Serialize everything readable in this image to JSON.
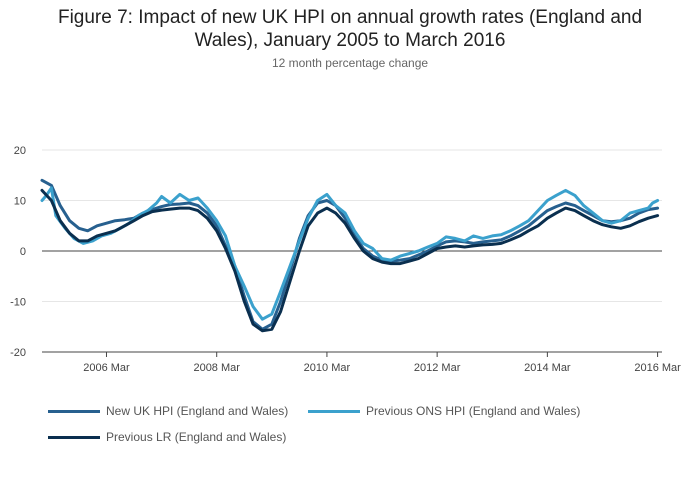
{
  "chart_data": {
    "type": "line",
    "title": "Figure 7: Impact of new UK HPI on annual growth rates (England and Wales), January 2005 to March 2016",
    "subtitle": "12 month percentage change",
    "xlabel": "",
    "ylabel": "",
    "xlim": [
      2005.0,
      2016.25
    ],
    "ylim": [
      -20,
      20
    ],
    "yticks": [
      -20,
      -10,
      0,
      10,
      20
    ],
    "xticks": [
      {
        "value": 2006.17,
        "label": "2006 Mar"
      },
      {
        "value": 2008.17,
        "label": "2008 Mar"
      },
      {
        "value": 2010.17,
        "label": "2010 Mar"
      },
      {
        "value": 2012.17,
        "label": "2012 Mar"
      },
      {
        "value": 2014.17,
        "label": "2014 Mar"
      },
      {
        "value": 2016.17,
        "label": "2016 Mar"
      }
    ],
    "grid": true,
    "legend_position": "bottom",
    "series": [
      {
        "name": "New UK HPI (England and Wales)",
        "color": "#27608f",
        "points": [
          [
            2005.0,
            14
          ],
          [
            2005.17,
            13
          ],
          [
            2005.33,
            9
          ],
          [
            2005.5,
            6
          ],
          [
            2005.67,
            4.5
          ],
          [
            2005.83,
            4
          ],
          [
            2006.0,
            5
          ],
          [
            2006.17,
            5.5
          ],
          [
            2006.33,
            6
          ],
          [
            2006.5,
            6.2
          ],
          [
            2006.67,
            6.5
          ],
          [
            2006.83,
            7.5
          ],
          [
            2007.0,
            8.2
          ],
          [
            2007.17,
            8.8
          ],
          [
            2007.33,
            9.2
          ],
          [
            2007.5,
            9.3
          ],
          [
            2007.67,
            9.5
          ],
          [
            2007.83,
            9
          ],
          [
            2008.0,
            7.5
          ],
          [
            2008.17,
            5
          ],
          [
            2008.33,
            1
          ],
          [
            2008.5,
            -3
          ],
          [
            2008.67,
            -9
          ],
          [
            2008.83,
            -14
          ],
          [
            2009.0,
            -15.5
          ],
          [
            2009.17,
            -14.5
          ],
          [
            2009.33,
            -10
          ],
          [
            2009.5,
            -4
          ],
          [
            2009.67,
            2.5
          ],
          [
            2009.83,
            7
          ],
          [
            2010.0,
            9.5
          ],
          [
            2010.17,
            10
          ],
          [
            2010.33,
            9
          ],
          [
            2010.5,
            6.5
          ],
          [
            2010.67,
            3
          ],
          [
            2010.83,
            0.5
          ],
          [
            2011.0,
            -1
          ],
          [
            2011.17,
            -1.8
          ],
          [
            2011.33,
            -2
          ],
          [
            2011.5,
            -1.8
          ],
          [
            2011.67,
            -1.5
          ],
          [
            2011.83,
            -0.8
          ],
          [
            2012.0,
            0
          ],
          [
            2012.17,
            1
          ],
          [
            2012.33,
            1.8
          ],
          [
            2012.5,
            2
          ],
          [
            2012.67,
            1.8
          ],
          [
            2012.83,
            1.5
          ],
          [
            2013.0,
            1.8
          ],
          [
            2013.17,
            2
          ],
          [
            2013.33,
            2.2
          ],
          [
            2013.5,
            3
          ],
          [
            2013.67,
            4
          ],
          [
            2013.83,
            5
          ],
          [
            2014.0,
            6.5
          ],
          [
            2014.17,
            8
          ],
          [
            2014.33,
            8.8
          ],
          [
            2014.5,
            9.5
          ],
          [
            2014.67,
            9
          ],
          [
            2014.83,
            8
          ],
          [
            2015.0,
            7
          ],
          [
            2015.17,
            6
          ],
          [
            2015.33,
            5.8
          ],
          [
            2015.5,
            6
          ],
          [
            2015.67,
            6.5
          ],
          [
            2015.83,
            7.5
          ],
          [
            2016.0,
            8.2
          ],
          [
            2016.17,
            8.5
          ]
        ]
      },
      {
        "name": "Previous ONS HPI (England and Wales)",
        "color": "#3ba1cd",
        "points": [
          [
            2005.0,
            10
          ],
          [
            2005.08,
            11
          ],
          [
            2005.17,
            12.5
          ],
          [
            2005.25,
            7
          ],
          [
            2005.42,
            4.5
          ],
          [
            2005.58,
            2.5
          ],
          [
            2005.75,
            1.5
          ],
          [
            2005.92,
            2
          ],
          [
            2006.08,
            3
          ],
          [
            2006.25,
            3.5
          ],
          [
            2006.42,
            4.5
          ],
          [
            2006.58,
            5.5
          ],
          [
            2006.75,
            7
          ],
          [
            2006.92,
            8
          ],
          [
            2007.08,
            9.5
          ],
          [
            2007.17,
            10.8
          ],
          [
            2007.33,
            9.5
          ],
          [
            2007.5,
            11.2
          ],
          [
            2007.67,
            10
          ],
          [
            2007.83,
            10.5
          ],
          [
            2008.0,
            8.5
          ],
          [
            2008.17,
            6
          ],
          [
            2008.33,
            3
          ],
          [
            2008.5,
            -3
          ],
          [
            2008.67,
            -7
          ],
          [
            2008.83,
            -11
          ],
          [
            2009.0,
            -13.5
          ],
          [
            2009.17,
            -12.5
          ],
          [
            2009.33,
            -8
          ],
          [
            2009.5,
            -3
          ],
          [
            2009.67,
            2
          ],
          [
            2009.83,
            6.5
          ],
          [
            2010.0,
            10
          ],
          [
            2010.17,
            11.2
          ],
          [
            2010.33,
            9
          ],
          [
            2010.5,
            7.5
          ],
          [
            2010.67,
            4
          ],
          [
            2010.83,
            1.5
          ],
          [
            2011.0,
            0.5
          ],
          [
            2011.17,
            -1.5
          ],
          [
            2011.33,
            -1.8
          ],
          [
            2011.5,
            -1
          ],
          [
            2011.67,
            -0.5
          ],
          [
            2011.83,
            0
          ],
          [
            2012.0,
            0.8
          ],
          [
            2012.17,
            1.5
          ],
          [
            2012.33,
            2.8
          ],
          [
            2012.5,
            2.5
          ],
          [
            2012.67,
            2
          ],
          [
            2012.83,
            3
          ],
          [
            2013.0,
            2.5
          ],
          [
            2013.17,
            3
          ],
          [
            2013.33,
            3.2
          ],
          [
            2013.5,
            4
          ],
          [
            2013.67,
            5
          ],
          [
            2013.83,
            6
          ],
          [
            2014.0,
            8
          ],
          [
            2014.17,
            10
          ],
          [
            2014.33,
            11
          ],
          [
            2014.5,
            12
          ],
          [
            2014.67,
            11
          ],
          [
            2014.83,
            9
          ],
          [
            2015.0,
            7.5
          ],
          [
            2015.17,
            6
          ],
          [
            2015.33,
            5.5
          ],
          [
            2015.5,
            6
          ],
          [
            2015.67,
            7.5
          ],
          [
            2015.83,
            8
          ],
          [
            2016.0,
            8.5
          ],
          [
            2016.08,
            9.5
          ],
          [
            2016.17,
            10
          ]
        ]
      },
      {
        "name": "Previous LR (England and Wales)",
        "color": "#0a2f4f",
        "points": [
          [
            2005.0,
            12
          ],
          [
            2005.17,
            10
          ],
          [
            2005.33,
            6
          ],
          [
            2005.5,
            3.5
          ],
          [
            2005.67,
            2
          ],
          [
            2005.83,
            2
          ],
          [
            2006.0,
            3
          ],
          [
            2006.17,
            3.5
          ],
          [
            2006.33,
            4
          ],
          [
            2006.5,
            5
          ],
          [
            2006.67,
            6
          ],
          [
            2006.83,
            7
          ],
          [
            2007.0,
            7.8
          ],
          [
            2007.17,
            8.1
          ],
          [
            2007.33,
            8.3
          ],
          [
            2007.5,
            8.5
          ],
          [
            2007.67,
            8.5
          ],
          [
            2007.83,
            8
          ],
          [
            2008.0,
            6.5
          ],
          [
            2008.17,
            4
          ],
          [
            2008.33,
            0.5
          ],
          [
            2008.5,
            -4
          ],
          [
            2008.67,
            -10
          ],
          [
            2008.83,
            -14.5
          ],
          [
            2009.0,
            -15.8
          ],
          [
            2009.17,
            -15.5
          ],
          [
            2009.33,
            -12
          ],
          [
            2009.5,
            -6
          ],
          [
            2009.67,
            0
          ],
          [
            2009.83,
            5
          ],
          [
            2010.0,
            7.5
          ],
          [
            2010.17,
            8.5
          ],
          [
            2010.33,
            7.5
          ],
          [
            2010.5,
            5.5
          ],
          [
            2010.67,
            2.5
          ],
          [
            2010.83,
            0
          ],
          [
            2011.0,
            -1.5
          ],
          [
            2011.17,
            -2.2
          ],
          [
            2011.33,
            -2.5
          ],
          [
            2011.5,
            -2.5
          ],
          [
            2011.67,
            -2
          ],
          [
            2011.83,
            -1.5
          ],
          [
            2012.0,
            -0.5
          ],
          [
            2012.17,
            0.5
          ],
          [
            2012.33,
            0.8
          ],
          [
            2012.5,
            1
          ],
          [
            2012.67,
            0.8
          ],
          [
            2012.83,
            1
          ],
          [
            2013.0,
            1.2
          ],
          [
            2013.17,
            1.3
          ],
          [
            2013.33,
            1.5
          ],
          [
            2013.5,
            2.2
          ],
          [
            2013.67,
            3
          ],
          [
            2013.83,
            4
          ],
          [
            2014.0,
            5
          ],
          [
            2014.17,
            6.5
          ],
          [
            2014.33,
            7.5
          ],
          [
            2014.5,
            8.5
          ],
          [
            2014.67,
            8
          ],
          [
            2014.83,
            7
          ],
          [
            2015.0,
            6
          ],
          [
            2015.17,
            5.2
          ],
          [
            2015.33,
            4.8
          ],
          [
            2015.5,
            4.5
          ],
          [
            2015.67,
            5
          ],
          [
            2015.83,
            5.8
          ],
          [
            2016.0,
            6.5
          ],
          [
            2016.17,
            7
          ]
        ]
      }
    ]
  }
}
